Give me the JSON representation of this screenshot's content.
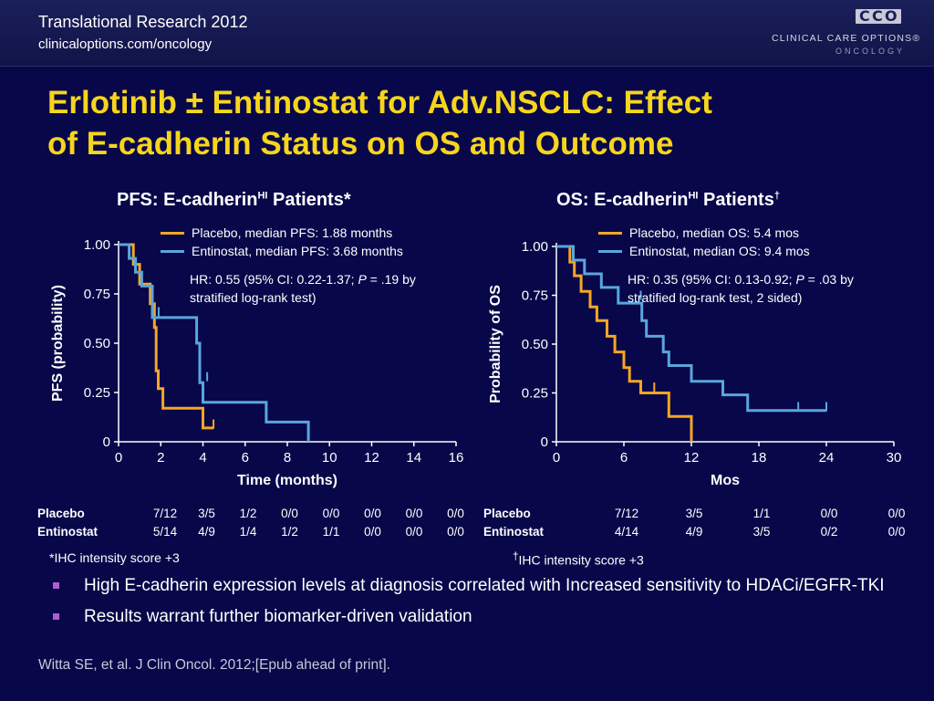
{
  "header": {
    "conference": "Translational Research 2012",
    "url": "clinicaloptions.com/oncology",
    "logo_mark": "CCO",
    "logo_line1": "CLINICAL CARE OPTIONS®",
    "logo_line2": "ONCOLOGY"
  },
  "title": {
    "line1": "Erlotinib ± Entinostat for Adv.NSCLC: Effect",
    "line2": "of E-cadherin Status on OS and Outcome"
  },
  "colors": {
    "placebo": "#f5a623",
    "entinostat": "#5aa6dc",
    "title": "#f7d51c",
    "bullet": "#b35bd3"
  },
  "pfs": {
    "title_main": "PFS: E-cadherin",
    "title_sup": "HI",
    "title_end": " Patients*",
    "legend": [
      "Placebo, median PFS: 1.88 months",
      "Entinostat, median PFS: 3.68 months"
    ],
    "hr_line1": "HR: 0.55 (95% CI: 0.22-1.37; ",
    "hr_p": "P",
    "hr_line1_end": " = .19 by",
    "hr_line2": "stratified log-rank test)",
    "risk": {
      "placebo_label": "Placebo",
      "entinostat_label": "Entinostat",
      "placebo": [
        "7/12",
        "3/5",
        "1/2",
        "0/0",
        "0/0",
        "0/0",
        "0/0",
        "0/0"
      ],
      "entinostat": [
        "5/14",
        "4/9",
        "1/4",
        "1/2",
        "1/1",
        "0/0",
        "0/0",
        "0/0"
      ]
    },
    "footnote": "*IHC intensity score +3"
  },
  "os": {
    "title_main": "OS: E-cadherin",
    "title_sup": "HI",
    "title_end": " Patients",
    "title_dagger": "†",
    "legend": [
      "Placebo, median OS: 5.4 mos",
      "Entinostat, median OS: 9.4 mos"
    ],
    "hr_line1": "HR: 0.35 (95% CI: 0.13-0.92; ",
    "hr_p": "P",
    "hr_line1_end": " = .03 by",
    "hr_line2": "stratified log-rank test, 2 sided)",
    "risk": {
      "placebo_label": "Placebo",
      "entinostat_label": "Entinostat",
      "placebo": [
        "7/12",
        "3/5",
        "1/1",
        "0/0",
        "0/0"
      ],
      "entinostat": [
        "4/14",
        "4/9",
        "3/5",
        "0/2",
        "0/0"
      ]
    },
    "footnote_dagger": "†",
    "footnote": "IHC intensity score +3"
  },
  "bullets": [
    "High E-cadherin expression levels at diagnosis correlated with Increased sensitivity to HDACi/EGFR-TKI",
    "Results warrant further biomarker-driven validation"
  ],
  "citation": "Witta SE, et al. J Clin Oncol. 2012;[Epub ahead of print].",
  "chart_data": [
    {
      "type": "line",
      "title": "PFS: E-cadherinHI Patients*",
      "xlabel": "Time (months)",
      "ylabel": "PFS (probability)",
      "xlim": [
        0,
        16
      ],
      "ylim": [
        0,
        1
      ],
      "xticks": [
        "0",
        "2",
        "4",
        "6",
        "8",
        "10",
        "12",
        "14",
        "16"
      ],
      "yticks": [
        "0",
        "0.25",
        "0.50",
        "0.75",
        "1.00"
      ],
      "series": [
        {
          "name": "Placebo",
          "color": "#f5a623",
          "points": [
            [
              0,
              1
            ],
            [
              0.7,
              1
            ],
            [
              0.7,
              0.9
            ],
            [
              1.0,
              0.9
            ],
            [
              1.0,
              0.8
            ],
            [
              1.5,
              0.8
            ],
            [
              1.5,
              0.7
            ],
            [
              1.7,
              0.7
            ],
            [
              1.7,
              0.58
            ],
            [
              1.78,
              0.58
            ],
            [
              1.78,
              0.36
            ],
            [
              1.88,
              0.36
            ],
            [
              1.88,
              0.27
            ],
            [
              2.1,
              0.27
            ],
            [
              2.1,
              0.17
            ],
            [
              4.0,
              0.17
            ],
            [
              4.0,
              0.07
            ],
            [
              4.5,
              0.07
            ]
          ],
          "censored": [
            [
              4.5,
              0.09
            ]
          ]
        },
        {
          "name": "Entinostat",
          "color": "#5aa6dc",
          "points": [
            [
              0,
              1
            ],
            [
              0.5,
              1
            ],
            [
              0.5,
              0.93
            ],
            [
              0.8,
              0.93
            ],
            [
              0.8,
              0.86
            ],
            [
              1.1,
              0.86
            ],
            [
              1.1,
              0.79
            ],
            [
              1.6,
              0.79
            ],
            [
              1.6,
              0.63
            ],
            [
              3.7,
              0.63
            ],
            [
              3.7,
              0.5
            ],
            [
              3.85,
              0.5
            ],
            [
              3.85,
              0.3
            ],
            [
              4.0,
              0.3
            ],
            [
              4.0,
              0.2
            ],
            [
              7.0,
              0.2
            ],
            [
              7.0,
              0.1
            ],
            [
              9.0,
              0.1
            ],
            [
              9.0,
              0
            ]
          ],
          "censored": [
            [
              1.9,
              0.66
            ],
            [
              3.7,
              0.56
            ],
            [
              4.2,
              0.33
            ]
          ]
        }
      ]
    },
    {
      "type": "line",
      "title": "OS: E-cadherinHI Patients†",
      "xlabel": "Mos",
      "ylabel": "Probability of OS",
      "xlim": [
        0,
        30
      ],
      "ylim": [
        0,
        1
      ],
      "xticks": [
        "0",
        "6",
        "12",
        "18",
        "24",
        "30"
      ],
      "yticks": [
        "0",
        "0.25",
        "0.50",
        "0.75",
        "1.00"
      ],
      "series": [
        {
          "name": "Placebo",
          "color": "#f5a623",
          "points": [
            [
              0,
              1
            ],
            [
              1.2,
              1
            ],
            [
              1.2,
              0.92
            ],
            [
              1.6,
              0.92
            ],
            [
              1.6,
              0.85
            ],
            [
              2.2,
              0.85
            ],
            [
              2.2,
              0.77
            ],
            [
              3.0,
              0.77
            ],
            [
              3.0,
              0.69
            ],
            [
              3.6,
              0.69
            ],
            [
              3.6,
              0.62
            ],
            [
              4.5,
              0.62
            ],
            [
              4.5,
              0.54
            ],
            [
              5.2,
              0.54
            ],
            [
              5.2,
              0.46
            ],
            [
              6.0,
              0.46
            ],
            [
              6.0,
              0.38
            ],
            [
              6.5,
              0.38
            ],
            [
              6.5,
              0.31
            ],
            [
              7.5,
              0.31
            ],
            [
              7.5,
              0.25
            ],
            [
              10.0,
              0.25
            ],
            [
              10.0,
              0.13
            ],
            [
              12.0,
              0.13
            ],
            [
              12.0,
              0
            ]
          ],
          "censored": [
            [
              8.7,
              0.28
            ]
          ]
        },
        {
          "name": "Entinostat",
          "color": "#5aa6dc",
          "points": [
            [
              0,
              1
            ],
            [
              1.5,
              1
            ],
            [
              1.5,
              0.93
            ],
            [
              2.5,
              0.93
            ],
            [
              2.5,
              0.86
            ],
            [
              4.0,
              0.86
            ],
            [
              4.0,
              0.79
            ],
            [
              5.5,
              0.79
            ],
            [
              5.5,
              0.71
            ],
            [
              7.6,
              0.71
            ],
            [
              7.6,
              0.62
            ],
            [
              8.0,
              0.62
            ],
            [
              8.0,
              0.54
            ],
            [
              9.5,
              0.54
            ],
            [
              9.5,
              0.46
            ],
            [
              10.0,
              0.46
            ],
            [
              10.0,
              0.39
            ],
            [
              12.0,
              0.39
            ],
            [
              12.0,
              0.31
            ],
            [
              14.8,
              0.31
            ],
            [
              14.8,
              0.24
            ],
            [
              17.0,
              0.24
            ],
            [
              17.0,
              0.16
            ],
            [
              24.0,
              0.16
            ]
          ],
          "censored": [
            [
              7.5,
              0.75
            ],
            [
              21.5,
              0.18
            ],
            [
              24.0,
              0.18
            ]
          ]
        }
      ]
    }
  ]
}
